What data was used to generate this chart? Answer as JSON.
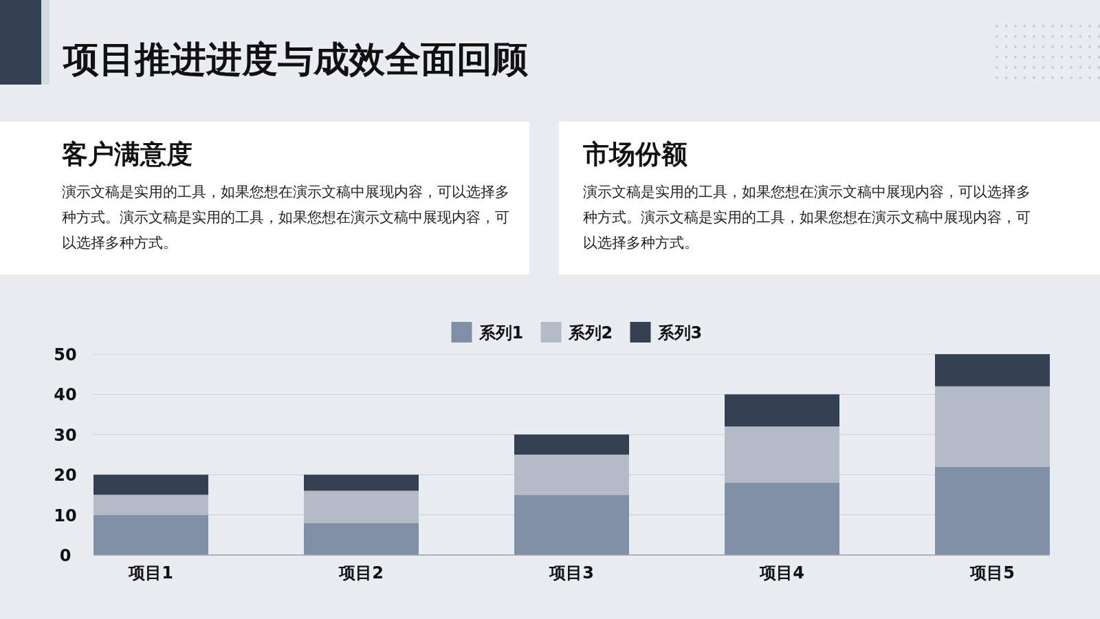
{
  "chart_data": {
    "type": "bar",
    "stacked": true,
    "title": "项目推进进度与成效全面回顾",
    "annotations": [
      "客户满意度",
      "演示文稿是实用的工具，如果您想在演示文稿中展现内容，可以选择多种方式。演示文稿是实用的工具，如果您想在演示文稿中展现内容，可以选择多种方式。",
      "市场份额",
      "演示文稿是实用的工具，如果您想在演示文稿中展现内容，可以选择多种方式。演示文稿是实用的工具，如果您想在演示文稿中展现内容，可以选择多种方式。"
    ],
    "categories": [
      "项目1",
      "项目2",
      "项目3",
      "项目4",
      "项目5"
    ],
    "series": [
      {
        "name": "系列1",
        "color": "#8190a7",
        "values": [
          10,
          8,
          15,
          18,
          22
        ]
      },
      {
        "name": "系列2",
        "color": "#b4bbc6",
        "values": [
          5,
          8,
          10,
          14,
          20
        ]
      },
      {
        "name": "系列3",
        "color": "#334152",
        "values": [
          5,
          4,
          5,
          8,
          8
        ]
      }
    ],
    "ylim": [
      0,
      50
    ],
    "yticks": [
      0,
      10,
      20,
      30,
      40,
      50
    ],
    "grid": "y",
    "legend": "top"
  }
}
